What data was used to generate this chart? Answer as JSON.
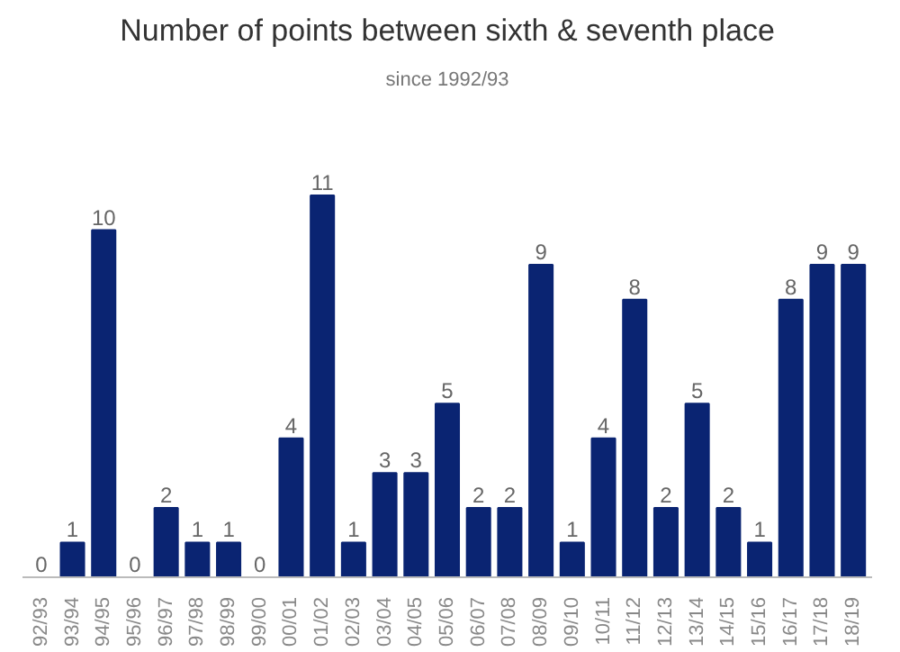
{
  "chart_data": {
    "type": "bar",
    "title": "Number of points between sixth & seventh place",
    "subtitle": "since 1992/93",
    "categories": [
      "92/93",
      "93/94",
      "94/95",
      "95/96",
      "96/97",
      "97/98",
      "98/99",
      "99/00",
      "00/01",
      "01/02",
      "02/03",
      "03/04",
      "04/05",
      "05/06",
      "06/07",
      "07/08",
      "08/09",
      "09/10",
      "10/11",
      "11/12",
      "12/13",
      "13/14",
      "14/15",
      "15/16",
      "16/17",
      "17/18",
      "18/19"
    ],
    "values": [
      0,
      1,
      10,
      0,
      2,
      1,
      1,
      0,
      4,
      11,
      1,
      3,
      3,
      5,
      2,
      2,
      9,
      1,
      4,
      8,
      2,
      5,
      2,
      1,
      8,
      9,
      9
    ],
    "color": "#0a2472",
    "data_labels": true
  }
}
